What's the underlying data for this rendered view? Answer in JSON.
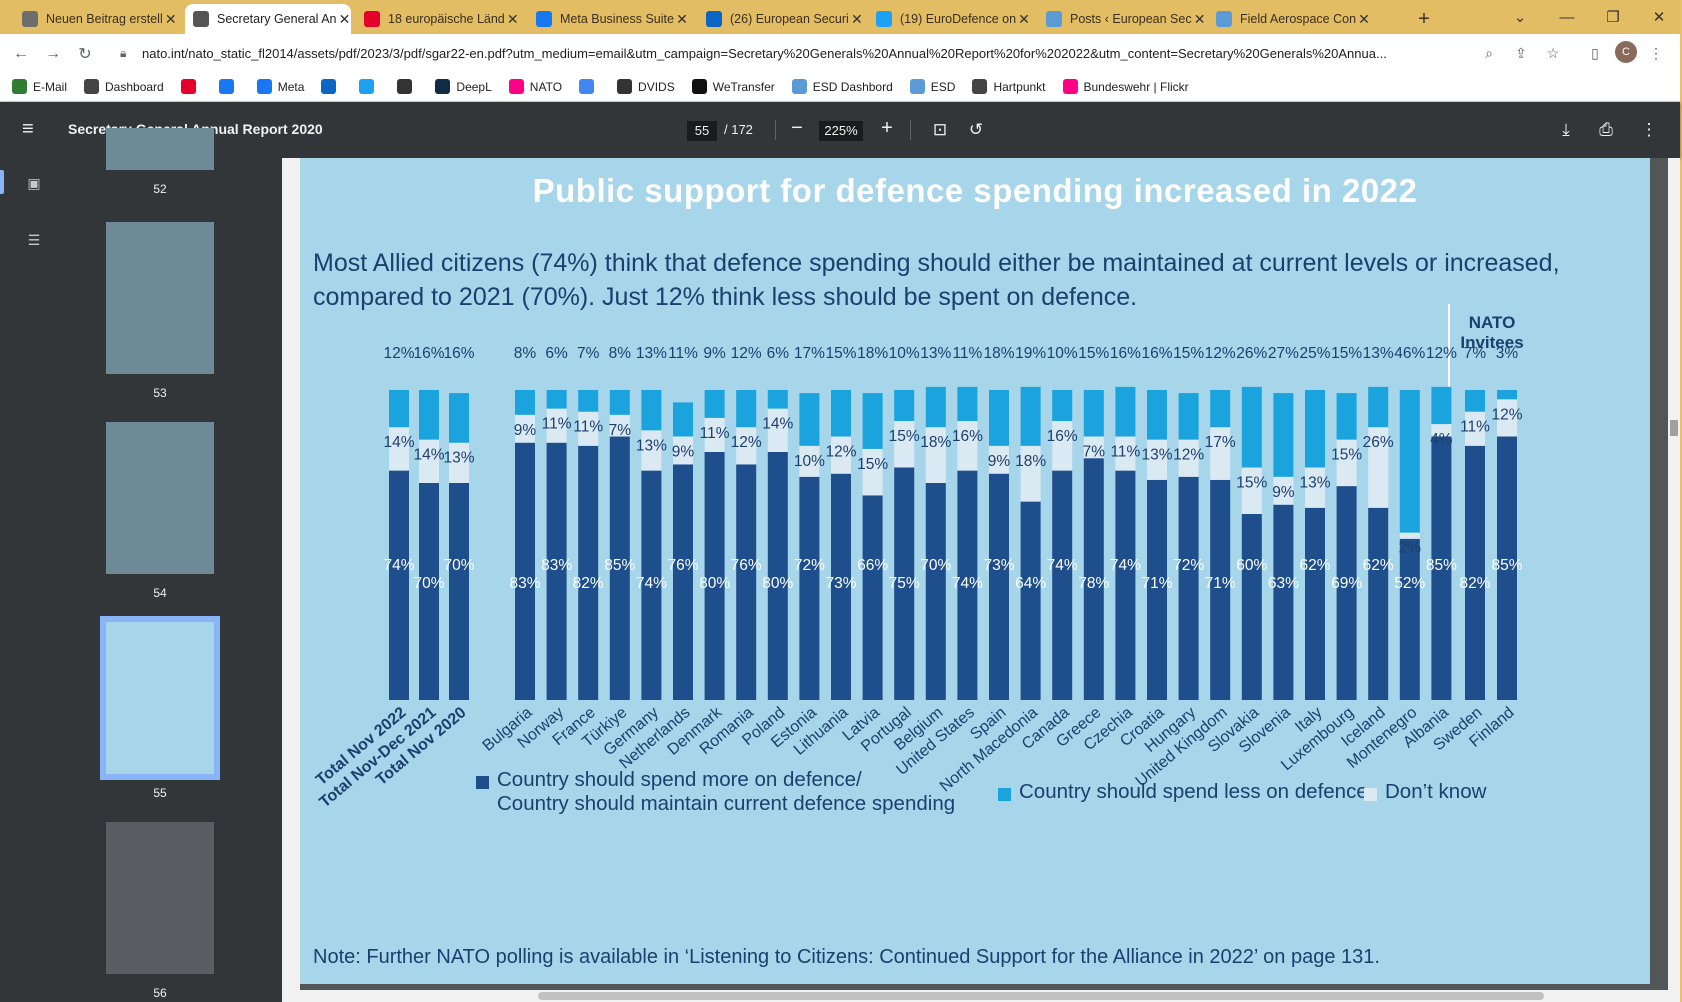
{
  "tabs": [
    {
      "title": "Neuen Beitrag erstell",
      "icon": "wordpress-icon",
      "color": "#6d6d6d"
    },
    {
      "title": "Secretary General An",
      "icon": "nato-icon",
      "color": "#555555",
      "active": true
    },
    {
      "title": "18 europäische Länd",
      "icon": "esut-icon",
      "color": "#e4002b"
    },
    {
      "title": "Meta Business Suite",
      "icon": "meta-icon",
      "color": "#1877f2"
    },
    {
      "title": "(26) European Securi",
      "icon": "linkedin-icon",
      "color": "#0a66c2"
    },
    {
      "title": "(19) EuroDefence on",
      "icon": "twitter-icon",
      "color": "#1da1f2"
    },
    {
      "title": "Posts ‹ European Sec",
      "icon": "esd-icon",
      "color": "#5b9bd5"
    },
    {
      "title": "Field Aerospace Con",
      "icon": "esd-icon",
      "color": "#5b9bd5"
    }
  ],
  "url": "nato.int/nato_static_fl2014/assets/pdf/2023/3/pdf/sgar22-en.pdf?utm_medium=email&utm_campaign=Secretary%20Generals%20Annual%20Report%20for%202022&utm_content=Secretary%20Generals%20Annua...",
  "profile_initial": "C",
  "bookmarks": [
    {
      "label": "E-Mail",
      "icon": "email-icon",
      "color": "#2e7d32"
    },
    {
      "label": "Dashboard",
      "icon": "wordpress-icon",
      "color": "#444444"
    },
    {
      "label": "",
      "icon": "esut-icon",
      "color": "#e4002b"
    },
    {
      "label": "",
      "icon": "facebook-icon",
      "color": "#1877f2"
    },
    {
      "label": "Meta",
      "icon": "meta-icon",
      "color": "#1877f2"
    },
    {
      "label": "",
      "icon": "linkedin-icon",
      "color": "#0a66c2"
    },
    {
      "label": "",
      "icon": "twitter-icon",
      "color": "#1da1f2"
    },
    {
      "label": "",
      "icon": "sr-icon",
      "color": "#333333"
    },
    {
      "label": "DeepL",
      "icon": "deepl-icon",
      "color": "#0f2b46"
    },
    {
      "label": "NATO",
      "icon": "flickr-icon",
      "color": "#ff0084"
    },
    {
      "label": "",
      "icon": "google-icon",
      "color": "#4285f4"
    },
    {
      "label": "DVIDS",
      "icon": "dvids-icon",
      "color": "#333333"
    },
    {
      "label": "WeTransfer",
      "icon": "wetransfer-icon",
      "color": "#111111"
    },
    {
      "label": "ESD Dashbord",
      "icon": "esd-icon",
      "color": "#5b9bd5"
    },
    {
      "label": "ESD",
      "icon": "esd-icon",
      "color": "#5b9bd5"
    },
    {
      "label": "Hartpunkt",
      "icon": "hartpunkt-icon",
      "color": "#444444"
    },
    {
      "label": "Bundeswehr | Flickr",
      "icon": "flickr-icon",
      "color": "#ff0084"
    }
  ],
  "pdf": {
    "title": "Secretary General Annual Report 2020",
    "page": "55",
    "page_total": "/ 172",
    "zoom": "225%"
  },
  "thumbnails": [
    {
      "label": "52"
    },
    {
      "label": "53"
    },
    {
      "label": "54"
    },
    {
      "label": "55",
      "selected": true
    },
    {
      "label": "56"
    }
  ],
  "page_content": {
    "title": "Public support for defence spending increased in 2022",
    "subtitle": "Most Allied citizens (74%) think that defence spending should either be maintained at current levels or increased, compared to 2021 (70%). Just 12% think less should be spent on defence.",
    "note": "Note: Further NATO polling is available in ‘Listening to Citizens: Continued Support for the Alliance in 2022’ on page 131.",
    "invitees_header": "NATO Invitees"
  },
  "chart_data": {
    "type": "bar",
    "stacked": true,
    "categories": [
      "Total Nov 2022",
      "Total Nov-Dec 2021",
      "Total Nov 2020",
      "Bulgaria",
      "Norway",
      "France",
      "Türkiye",
      "Germany",
      "Netherlands",
      "Denmark",
      "Romania",
      "Poland",
      "Estonia",
      "Lithuania",
      "Latvia",
      "Portugal",
      "Belgium",
      "United States",
      "Spain",
      "North Macedonia",
      "Canada",
      "Greece",
      "Czechia",
      "Croatia",
      "Hungary",
      "United Kingdom",
      "Slovakia",
      "Slovenia",
      "Italy",
      "Luxembourg",
      "Iceland",
      "Montenegro",
      "Albania",
      "Sweden",
      "Finland"
    ],
    "series": [
      {
        "name": "Country should spend more on defence/ Country should maintain current defence spending",
        "color": "#1f4e8c",
        "values": [
          74,
          70,
          70,
          83,
          83,
          82,
          85,
          74,
          76,
          80,
          76,
          80,
          72,
          73,
          66,
          75,
          70,
          74,
          73,
          64,
          74,
          78,
          74,
          71,
          72,
          71,
          60,
          63,
          62,
          69,
          62,
          52,
          85,
          82,
          85
        ]
      },
      {
        "name": "Don’t know",
        "color": "#dbe9f3",
        "values": [
          14,
          14,
          13,
          9,
          11,
          11,
          7,
          13,
          9,
          11,
          12,
          14,
          10,
          12,
          15,
          15,
          18,
          16,
          9,
          18,
          16,
          7,
          11,
          13,
          12,
          17,
          15,
          9,
          13,
          15,
          26,
          2,
          4,
          11,
          12
        ]
      },
      {
        "name": "Country should spend less on defence",
        "color": "#1aa3dc",
        "values": [
          12,
          16,
          16,
          8,
          6,
          7,
          8,
          13,
          11,
          9,
          12,
          6,
          17,
          15,
          18,
          10,
          13,
          11,
          18,
          19,
          10,
          15,
          16,
          16,
          15,
          12,
          26,
          27,
          25,
          15,
          13,
          46,
          12,
          7,
          3
        ]
      }
    ],
    "groups": {
      "totals": [
        0,
        1,
        2
      ],
      "allies": [
        3,
        32
      ],
      "invitees": [
        33,
        34
      ]
    },
    "ylim": [
      0,
      100
    ],
    "legend_position": "bottom"
  },
  "legend": {
    "more": "Country should spend more on defence/",
    "more2": "Country should maintain current defence spending",
    "less": "Country should spend less on defence",
    "dontknow": "Don’t know"
  }
}
